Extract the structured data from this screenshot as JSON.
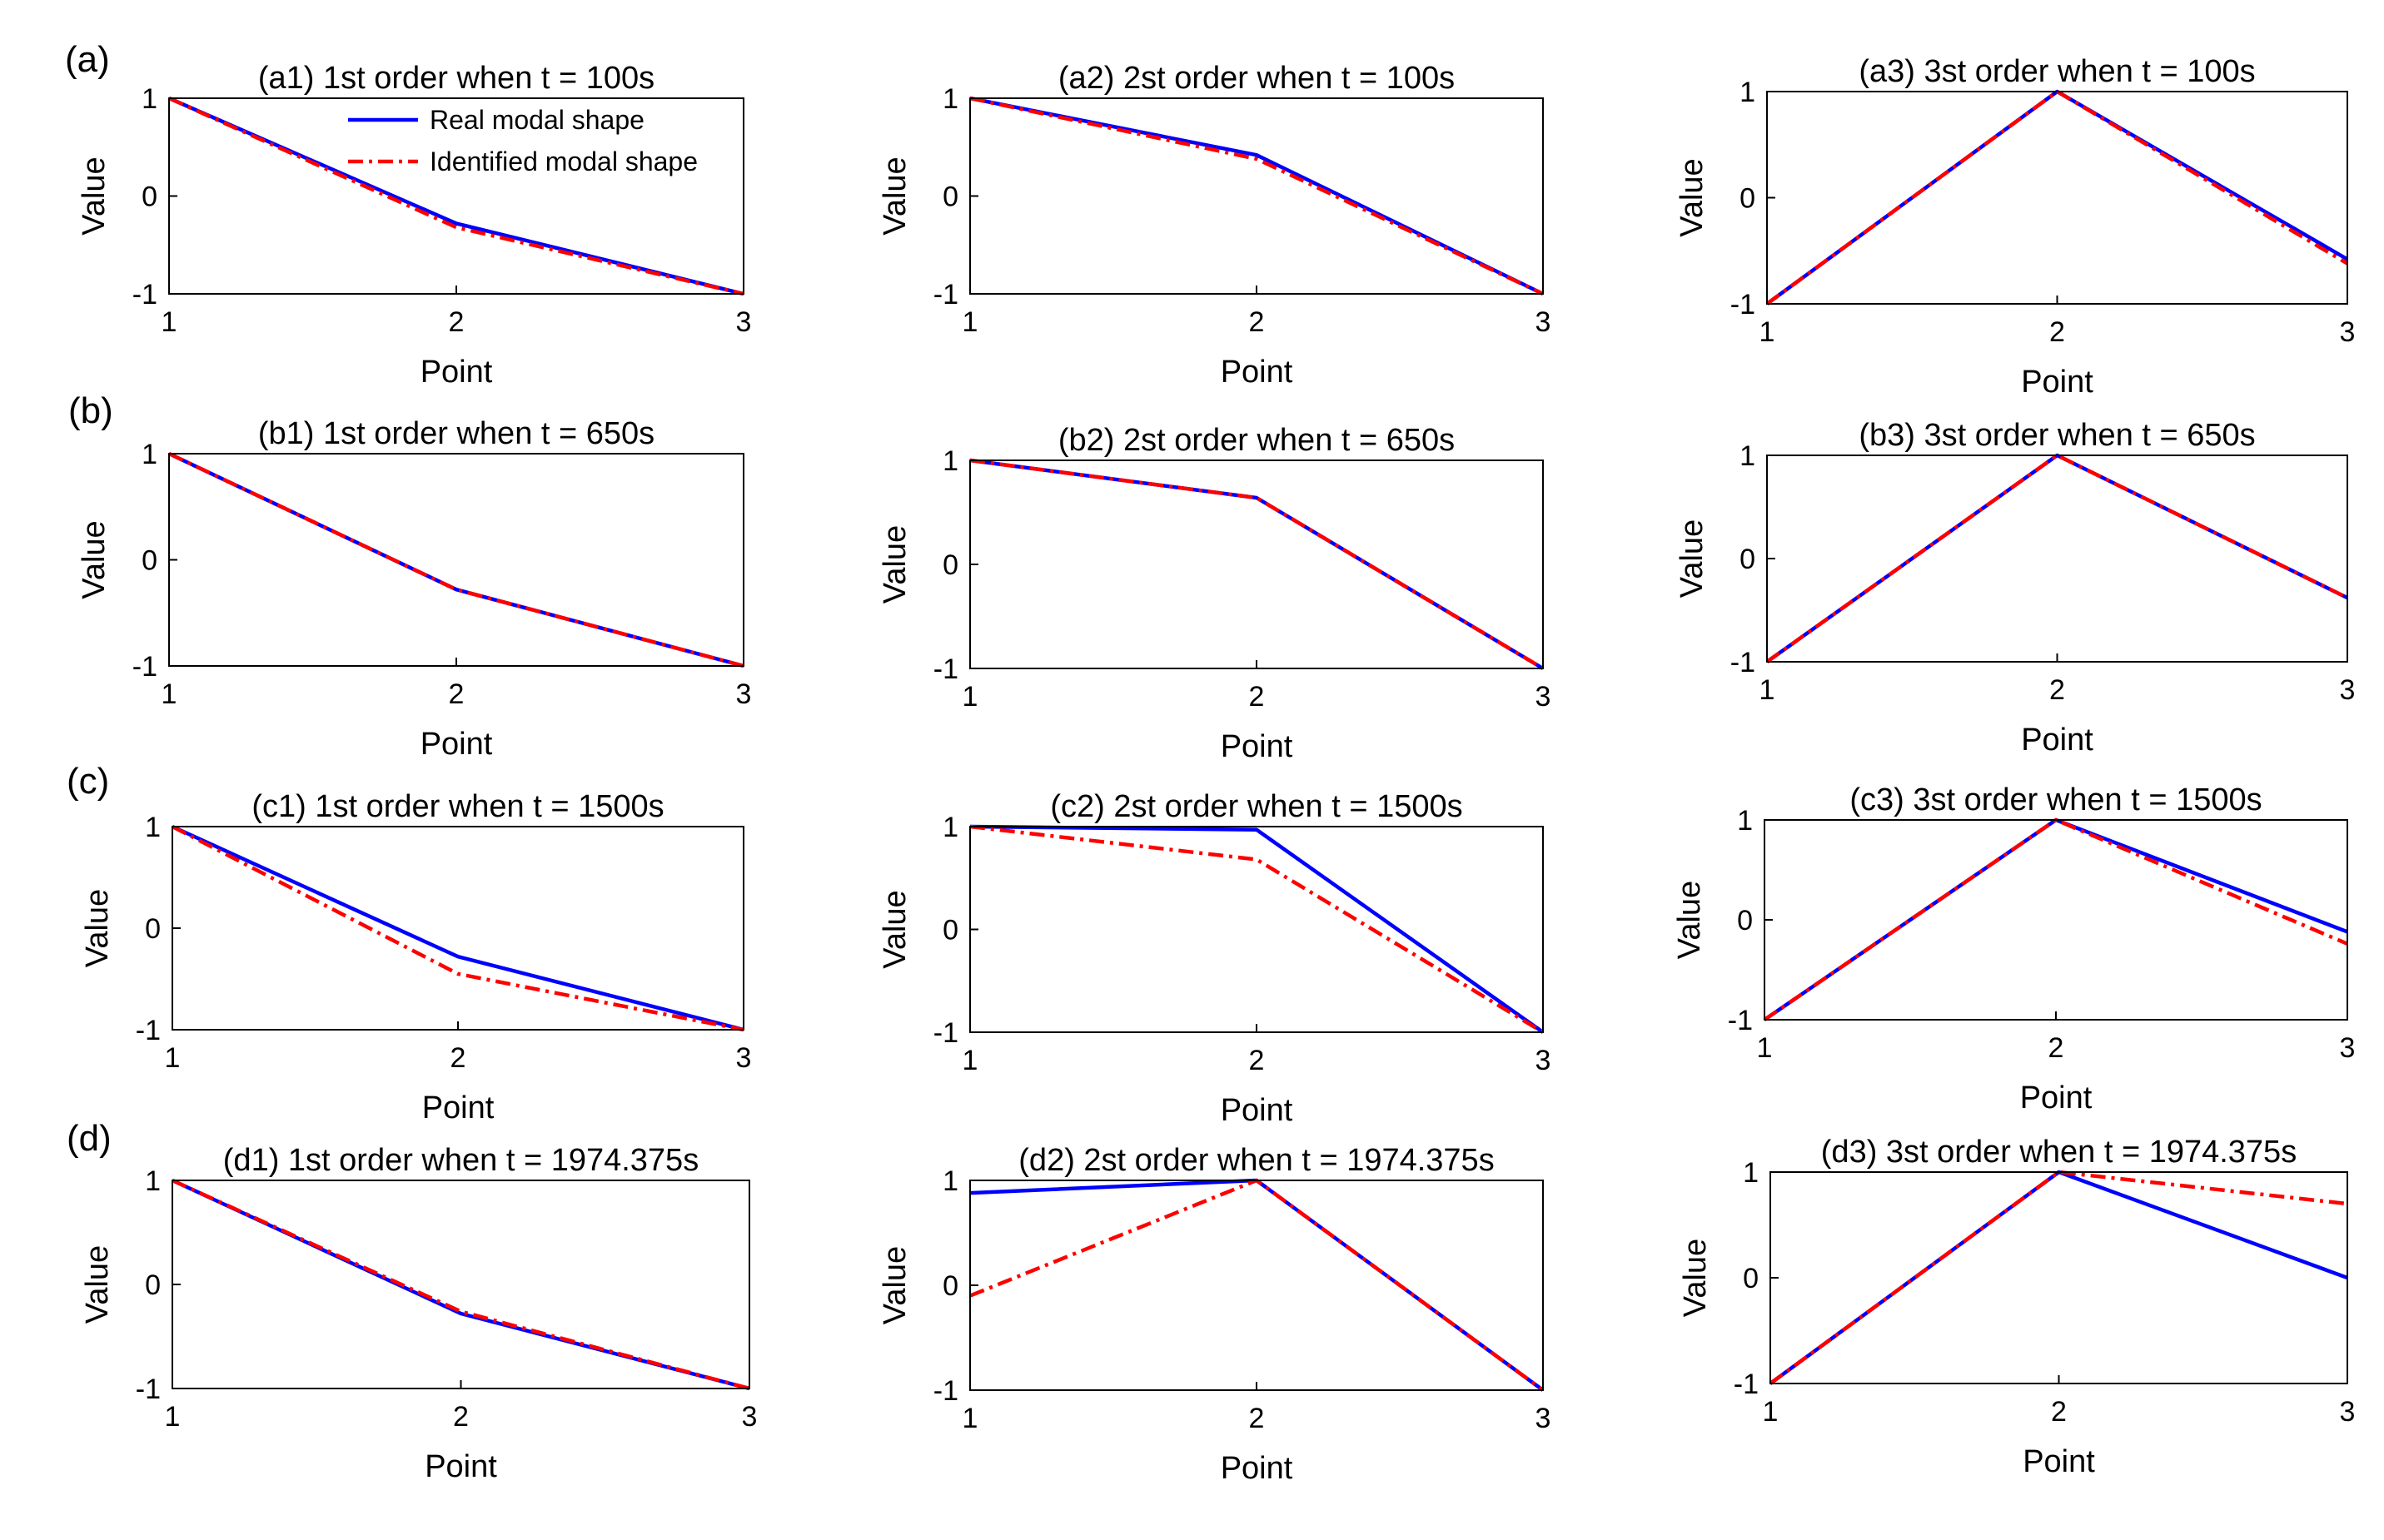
{
  "figure": {
    "row_labels": [
      "(a)",
      "(b)",
      "(c)",
      "(d)"
    ],
    "legend": {
      "real_label": "Real modal shape",
      "identified_label": "Identified modal shape",
      "placement": "top-right of panel a1"
    },
    "colors": {
      "real": "#0000ff",
      "identified": "#ff0000",
      "axis": "#000000"
    }
  },
  "chart_data": [
    {
      "id": "a1",
      "type": "line",
      "title": "(a1) 1st order when t = 100s",
      "xlabel": "Point",
      "ylabel": "Value",
      "x": [
        1,
        2,
        3
      ],
      "xticks": [
        "1",
        "2",
        "3"
      ],
      "yticks": [
        "-1",
        "0",
        "1"
      ],
      "xlim": [
        1,
        3
      ],
      "ylim": [
        -1,
        1
      ],
      "series": [
        {
          "name": "Real modal shape",
          "values": [
            1,
            -0.28,
            -1
          ]
        },
        {
          "name": "Identified modal shape",
          "values": [
            1,
            -0.32,
            -1
          ]
        }
      ]
    },
    {
      "id": "a2",
      "type": "line",
      "title": "(a2) 2st order when t = 100s",
      "xlabel": "Point",
      "ylabel": "Value",
      "x": [
        1,
        2,
        3
      ],
      "xticks": [
        "1",
        "2",
        "3"
      ],
      "yticks": [
        "-1",
        "0",
        "1"
      ],
      "xlim": [
        1,
        3
      ],
      "ylim": [
        -1,
        1
      ],
      "series": [
        {
          "name": "Real modal shape",
          "values": [
            1,
            0.42,
            -1
          ]
        },
        {
          "name": "Identified modal shape",
          "values": [
            1,
            0.38,
            -1
          ]
        }
      ]
    },
    {
      "id": "a3",
      "type": "line",
      "title": "(a3) 3st order when t = 100s",
      "xlabel": "Point",
      "ylabel": "Value",
      "x": [
        1,
        2,
        3
      ],
      "xticks": [
        "1",
        "2",
        "3"
      ],
      "yticks": [
        "-1",
        "0",
        "1"
      ],
      "xlim": [
        1,
        3
      ],
      "ylim": [
        -1,
        1
      ],
      "series": [
        {
          "name": "Real modal shape",
          "values": [
            -1,
            1,
            -0.58
          ]
        },
        {
          "name": "Identified modal shape",
          "values": [
            -1,
            1,
            -0.62
          ]
        }
      ]
    },
    {
      "id": "b1",
      "type": "line",
      "title": "(b1) 1st order when t = 650s",
      "xlabel": "Point",
      "ylabel": "Value",
      "x": [
        1,
        2,
        3
      ],
      "xticks": [
        "1",
        "2",
        "3"
      ],
      "yticks": [
        "-1",
        "0",
        "1"
      ],
      "xlim": [
        1,
        3
      ],
      "ylim": [
        -1,
        1
      ],
      "series": [
        {
          "name": "Real modal shape",
          "values": [
            1,
            -0.28,
            -1
          ]
        },
        {
          "name": "Identified modal shape",
          "values": [
            1,
            -0.28,
            -1
          ]
        }
      ]
    },
    {
      "id": "b2",
      "type": "line",
      "title": "(b2) 2st order when t = 650s",
      "xlabel": "Point",
      "ylabel": "Value",
      "x": [
        1,
        2,
        3
      ],
      "xticks": [
        "1",
        "2",
        "3"
      ],
      "yticks": [
        "-1",
        "0",
        "1"
      ],
      "xlim": [
        1,
        3
      ],
      "ylim": [
        -1,
        1
      ],
      "series": [
        {
          "name": "Real modal shape",
          "values": [
            1,
            0.64,
            -1
          ]
        },
        {
          "name": "Identified modal shape",
          "values": [
            1,
            0.64,
            -1
          ]
        }
      ]
    },
    {
      "id": "b3",
      "type": "line",
      "title": "(b3) 3st order when t = 650s",
      "xlabel": "Point",
      "ylabel": "Value",
      "x": [
        1,
        2,
        3
      ],
      "xticks": [
        "1",
        "2",
        "3"
      ],
      "yticks": [
        "-1",
        "0",
        "1"
      ],
      "xlim": [
        1,
        3
      ],
      "ylim": [
        -1,
        1
      ],
      "series": [
        {
          "name": "Real modal shape",
          "values": [
            -1,
            1,
            -0.38
          ]
        },
        {
          "name": "Identified modal shape",
          "values": [
            -1,
            1,
            -0.38
          ]
        }
      ]
    },
    {
      "id": "c1",
      "type": "line",
      "title": "(c1) 1st order when t = 1500s",
      "xlabel": "Point",
      "ylabel": "Value",
      "x": [
        1,
        2,
        3
      ],
      "xticks": [
        "1",
        "2",
        "3"
      ],
      "yticks": [
        "-1",
        "0",
        "1"
      ],
      "xlim": [
        1,
        3
      ],
      "ylim": [
        -1,
        1
      ],
      "series": [
        {
          "name": "Real modal shape",
          "values": [
            1,
            -0.28,
            -1
          ]
        },
        {
          "name": "Identified modal shape",
          "values": [
            1,
            -0.45,
            -1
          ]
        }
      ]
    },
    {
      "id": "c2",
      "type": "line",
      "title": "(c2) 2st order when t = 1500s",
      "xlabel": "Point",
      "ylabel": "Value",
      "x": [
        1,
        2,
        3
      ],
      "xticks": [
        "1",
        "2",
        "3"
      ],
      "yticks": [
        "-1",
        "0",
        "1"
      ],
      "xlim": [
        1,
        3
      ],
      "ylim": [
        -1,
        1
      ],
      "series": [
        {
          "name": "Real modal shape",
          "values": [
            1,
            0.97,
            -1
          ]
        },
        {
          "name": "Identified modal shape",
          "values": [
            1,
            0.68,
            -1
          ]
        }
      ]
    },
    {
      "id": "c3",
      "type": "line",
      "title": "(c3) 3st order when t = 1500s",
      "xlabel": "Point",
      "ylabel": "Value",
      "x": [
        1,
        2,
        3
      ],
      "xticks": [
        "1",
        "2",
        "3"
      ],
      "yticks": [
        "-1",
        "0",
        "1"
      ],
      "xlim": [
        1,
        3
      ],
      "ylim": [
        -1,
        1
      ],
      "series": [
        {
          "name": "Real modal shape",
          "values": [
            -1,
            1,
            -0.12
          ]
        },
        {
          "name": "Identified modal shape",
          "values": [
            -1,
            1,
            -0.24
          ]
        }
      ]
    },
    {
      "id": "d1",
      "type": "line",
      "title": "(d1) 1st order when t = 1974.375s",
      "xlabel": "Point",
      "ylabel": "Value",
      "x": [
        1,
        2,
        3
      ],
      "xticks": [
        "1",
        "2",
        "3"
      ],
      "yticks": [
        "-1",
        "0",
        "1"
      ],
      "xlim": [
        1,
        3
      ],
      "ylim": [
        -1,
        1
      ],
      "series": [
        {
          "name": "Real modal shape",
          "values": [
            1,
            -0.28,
            -1
          ]
        },
        {
          "name": "Identified modal shape",
          "values": [
            1,
            -0.26,
            -1
          ]
        }
      ]
    },
    {
      "id": "d2",
      "type": "line",
      "title": "(d2) 2st order when t = 1974.375s",
      "xlabel": "Point",
      "ylabel": "Value",
      "x": [
        1,
        2,
        3
      ],
      "xticks": [
        "1",
        "2",
        "3"
      ],
      "yticks": [
        "-1",
        "0",
        "1"
      ],
      "xlim": [
        1,
        3
      ],
      "ylim": [
        -1,
        1
      ],
      "series": [
        {
          "name": "Real modal shape",
          "values": [
            0.88,
            1,
            -1
          ]
        },
        {
          "name": "Identified modal shape",
          "values": [
            -0.1,
            1,
            -1
          ]
        }
      ]
    },
    {
      "id": "d3",
      "type": "line",
      "title": "(d3) 3st order when t = 1974.375s",
      "xlabel": "Point",
      "ylabel": "Value",
      "x": [
        1,
        2,
        3
      ],
      "xticks": [
        "1",
        "2",
        "3"
      ],
      "yticks": [
        "-1",
        "0",
        "1"
      ],
      "xlim": [
        1,
        3
      ],
      "ylim": [
        -1,
        1
      ],
      "series": [
        {
          "name": "Real modal shape",
          "values": [
            -1,
            1,
            0
          ]
        },
        {
          "name": "Identified modal shape",
          "values": [
            -1,
            1,
            0.7
          ]
        }
      ]
    }
  ]
}
